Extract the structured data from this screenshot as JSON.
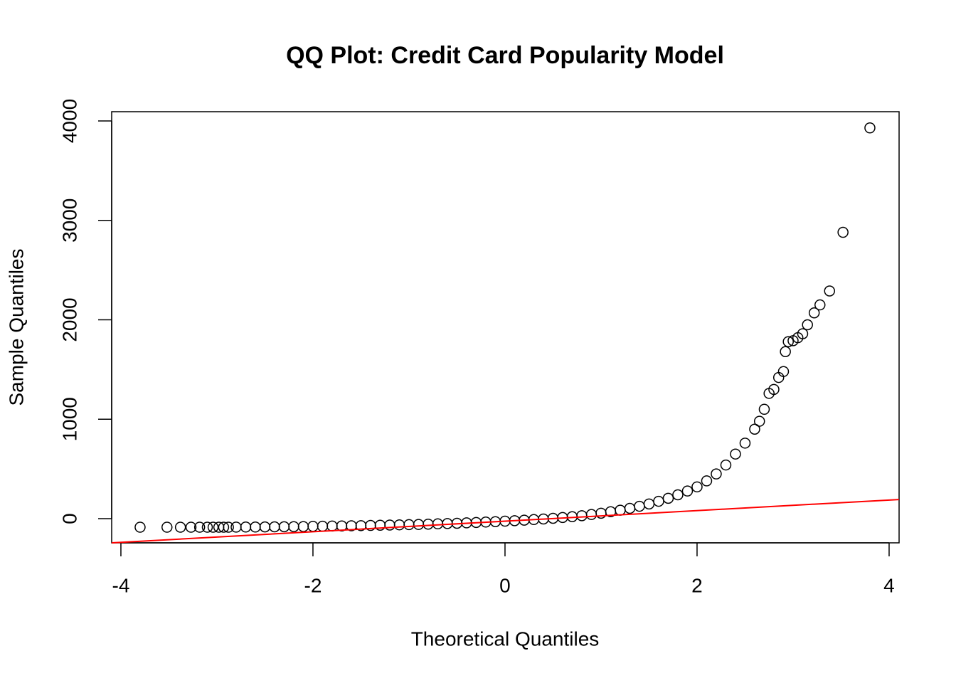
{
  "chart_data": {
    "type": "scatter",
    "title": "QQ Plot: Credit Card Popularity Model",
    "x_label": "Theoretical Quantiles",
    "y_label": "Sample Quantiles",
    "xlim": [
      -4.096,
      4.104
    ],
    "ylim": [
      -243,
      4093
    ],
    "xticks": [
      -4,
      -2,
      0,
      2,
      4
    ],
    "yticks": [
      0,
      1000,
      2000,
      3000,
      4000
    ],
    "series": [
      {
        "color": "#000000",
        "x": [
          -3.8,
          -3.52,
          -3.38,
          -3.27,
          -3.18,
          -3.1,
          -3.04,
          -2.98,
          -2.93,
          -2.88,
          -2.8,
          -2.7,
          -2.6,
          -2.5,
          -2.4,
          -2.3,
          -2.2,
          -2.1,
          -2.0,
          -1.9,
          -1.8,
          -1.7,
          -1.6,
          -1.5,
          -1.4,
          -1.3,
          -1.2,
          -1.1,
          -1.0,
          -0.9,
          -0.8,
          -0.7,
          -0.6,
          -0.5,
          -0.4,
          -0.3,
          -0.2,
          -0.1,
          0,
          0.1,
          0.2,
          0.3,
          0.4,
          0.5,
          0.6,
          0.7,
          0.8,
          0.9,
          1.0,
          1.1,
          1.2,
          1.3,
          1.4,
          1.5,
          1.6,
          1.7,
          1.8,
          1.9,
          2.0,
          2.1,
          2.2,
          2.3,
          2.4,
          2.5,
          2.6,
          2.65,
          2.7,
          2.75,
          2.8,
          2.85,
          2.9,
          2.92,
          2.95,
          3.0,
          3.05,
          3.1,
          3.15,
          3.22,
          3.28,
          3.38,
          3.52,
          3.8
        ],
        "values": [
          -86,
          -86,
          -86,
          -86,
          -86,
          -86,
          -86,
          -86,
          -86,
          -86,
          -85,
          -84,
          -84,
          -83,
          -82,
          -81,
          -80,
          -79,
          -77,
          -76,
          -74,
          -73,
          -71,
          -70,
          -68,
          -66,
          -64,
          -62,
          -60,
          -58,
          -55,
          -52,
          -49,
          -46,
          -42,
          -38,
          -34,
          -30,
          -25,
          -20,
          -15,
          -9,
          -3,
          4,
          12,
          20,
          30,
          42,
          55,
          70,
          85,
          104,
          125,
          148,
          175,
          205,
          240,
          278,
          320,
          380,
          450,
          540,
          650,
          760,
          900,
          980,
          1100,
          1260,
          1300,
          1420,
          1480,
          1680,
          1780,
          1790,
          1820,
          1860,
          1950,
          2070,
          2150,
          2290,
          2880,
          3930
        ]
      }
    ],
    "reference_line": {
      "color": "#ff0000",
      "x": [
        -4.096,
        4.104
      ],
      "values": [
        -243,
        193
      ]
    }
  }
}
